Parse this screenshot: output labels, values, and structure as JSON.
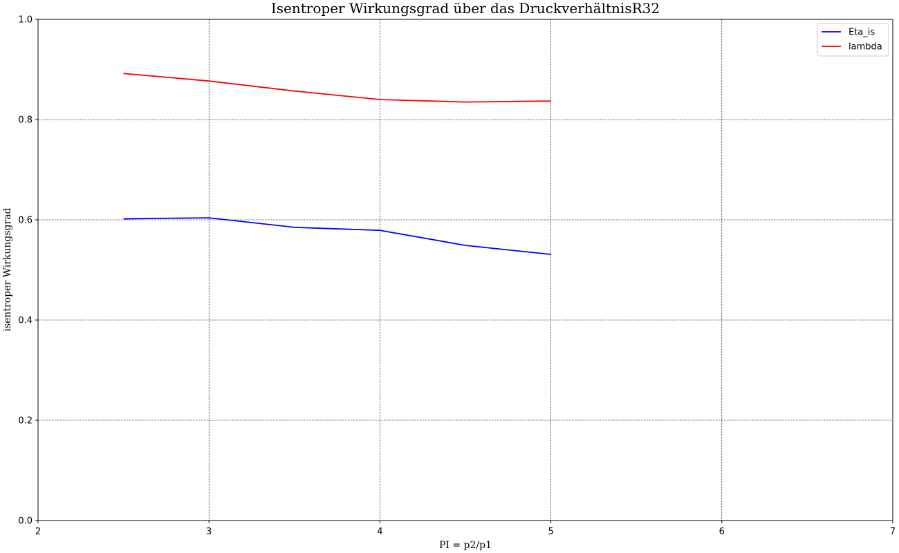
{
  "chart_data": {
    "type": "line",
    "title": "Isentroper Wirkungsgrad über das DruckverhältnisR32",
    "xlabel": "PI = p2/p1",
    "ylabel": "isentroper Wirkungsgrad",
    "xlim": [
      2,
      7
    ],
    "ylim": [
      0,
      1.0
    ],
    "x_ticks": [
      "2",
      "3",
      "4",
      "5",
      "6",
      "7"
    ],
    "y_ticks": [
      "0.0",
      "0.2",
      "0.4",
      "0.6",
      "0.8",
      "1.0"
    ],
    "grid": true,
    "legend_position": "top-right",
    "series": [
      {
        "name": "Eta_is",
        "color": "#0000ff",
        "x": [
          2.5,
          3.0,
          3.5,
          4.0,
          4.5,
          5.0
        ],
        "y": [
          0.602,
          0.604,
          0.585,
          0.579,
          0.549,
          0.531
        ]
      },
      {
        "name": "lambda",
        "color": "#ff0000",
        "x": [
          2.5,
          3.0,
          3.5,
          4.0,
          4.5,
          5.0
        ],
        "y": [
          0.892,
          0.877,
          0.857,
          0.84,
          0.835,
          0.837
        ]
      }
    ]
  }
}
